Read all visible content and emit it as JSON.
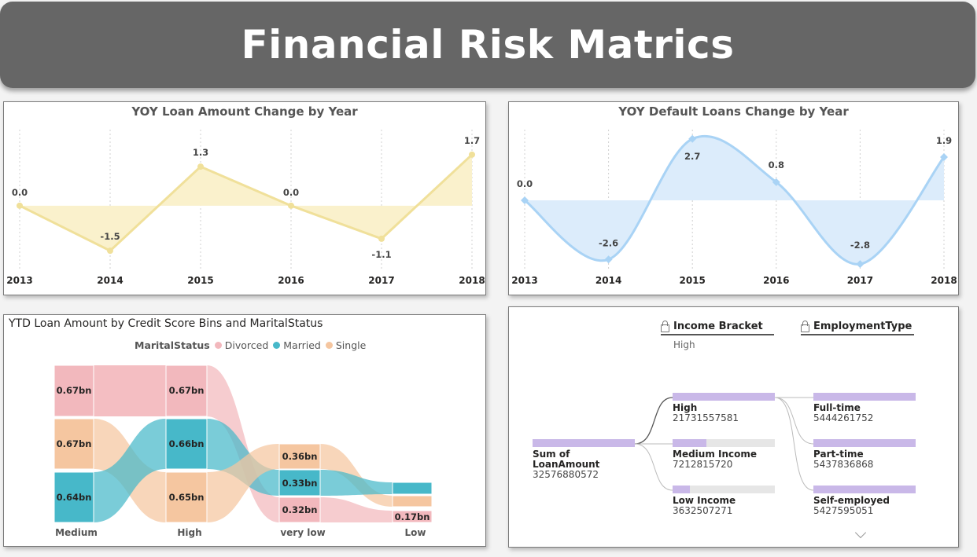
{
  "page_title": "Financial Risk Matrics",
  "chart_data": [
    {
      "type": "area",
      "title": "YOY Loan Amount Change by Year",
      "x": [
        "2013",
        "2014",
        "2015",
        "2016",
        "2017",
        "2018"
      ],
      "values": [
        0.0,
        -1.5,
        1.3,
        0.0,
        -1.1,
        1.7
      ],
      "data_labels": [
        "0.0",
        "-1.5",
        "1.3",
        "0.0",
        "-1.1",
        "1.7"
      ],
      "line_color": "#f0e09a",
      "fill_color": "#faf1cc",
      "curve": "straight",
      "ylim": [
        -1.6,
        1.8
      ]
    },
    {
      "type": "area",
      "title": "YOY Default Loans Change by Year",
      "x": [
        "2013",
        "2014",
        "2015",
        "2016",
        "2017",
        "2018"
      ],
      "values": [
        0.0,
        -2.6,
        2.7,
        0.8,
        -2.8,
        1.9
      ],
      "data_labels": [
        "0.0",
        "-2.6",
        "2.7",
        "0.8",
        "-2.8",
        "1.9"
      ],
      "line_color": "#a9d3f5",
      "fill_color": "#dcecfb",
      "curve": "smooth",
      "ylim": [
        -2.9,
        2.9
      ]
    },
    {
      "type": "sankey",
      "title": "YTD Loan Amount by Credit Score Bins and MaritalStatus",
      "legend_title": "MaritalStatus",
      "legend": [
        {
          "name": "Divorced",
          "color": "#f2b8bd"
        },
        {
          "name": "Married",
          "color": "#47b8c9"
        },
        {
          "name": "Single",
          "color": "#f5c6a0"
        }
      ],
      "categories": [
        "Medium",
        "High",
        "very low",
        "Low"
      ],
      "nodes": [
        {
          "category": "Medium",
          "status": "Divorced",
          "label": "0.67bn"
        },
        {
          "category": "Medium",
          "status": "Single",
          "label": "0.67bn"
        },
        {
          "category": "Medium",
          "status": "Married",
          "label": "0.64bn"
        },
        {
          "category": "High",
          "status": "Divorced",
          "label": "0.67bn"
        },
        {
          "category": "High",
          "status": "Married",
          "label": "0.66bn"
        },
        {
          "category": "High",
          "status": "Single",
          "label": "0.65bn"
        },
        {
          "category": "very low",
          "status": "Single",
          "label": "0.36bn"
        },
        {
          "category": "very low",
          "status": "Married",
          "label": "0.33bn"
        },
        {
          "category": "very low",
          "status": "Divorced",
          "label": "0.32bn"
        },
        {
          "category": "Low",
          "status": "Married",
          "label": ""
        },
        {
          "category": "Low",
          "status": "Single",
          "label": ""
        },
        {
          "category": "Low",
          "status": "Divorced",
          "label": "0.17bn"
        }
      ]
    }
  ],
  "decomposition": {
    "level1_header": "Income Bracket",
    "level1_selected": "High",
    "level2_header": "EmploymentType",
    "root": {
      "label": "Sum of LoanAmount",
      "value": "32576880572",
      "fraction": 1.0
    },
    "level1": [
      {
        "label": "High",
        "value": "21731557581",
        "fraction": 1.0
      },
      {
        "label": "Medium Income",
        "value": "7212815720",
        "fraction": 0.33
      },
      {
        "label": "Low Income",
        "value": "3632507271",
        "fraction": 0.17
      }
    ],
    "level2": [
      {
        "label": "Full-time",
        "value": "5444261752",
        "fraction": 1.0
      },
      {
        "label": "Part-time",
        "value": "5437836868",
        "fraction": 1.0
      },
      {
        "label": "Self-employed",
        "value": "5427595051",
        "fraction": 1.0
      }
    ]
  }
}
